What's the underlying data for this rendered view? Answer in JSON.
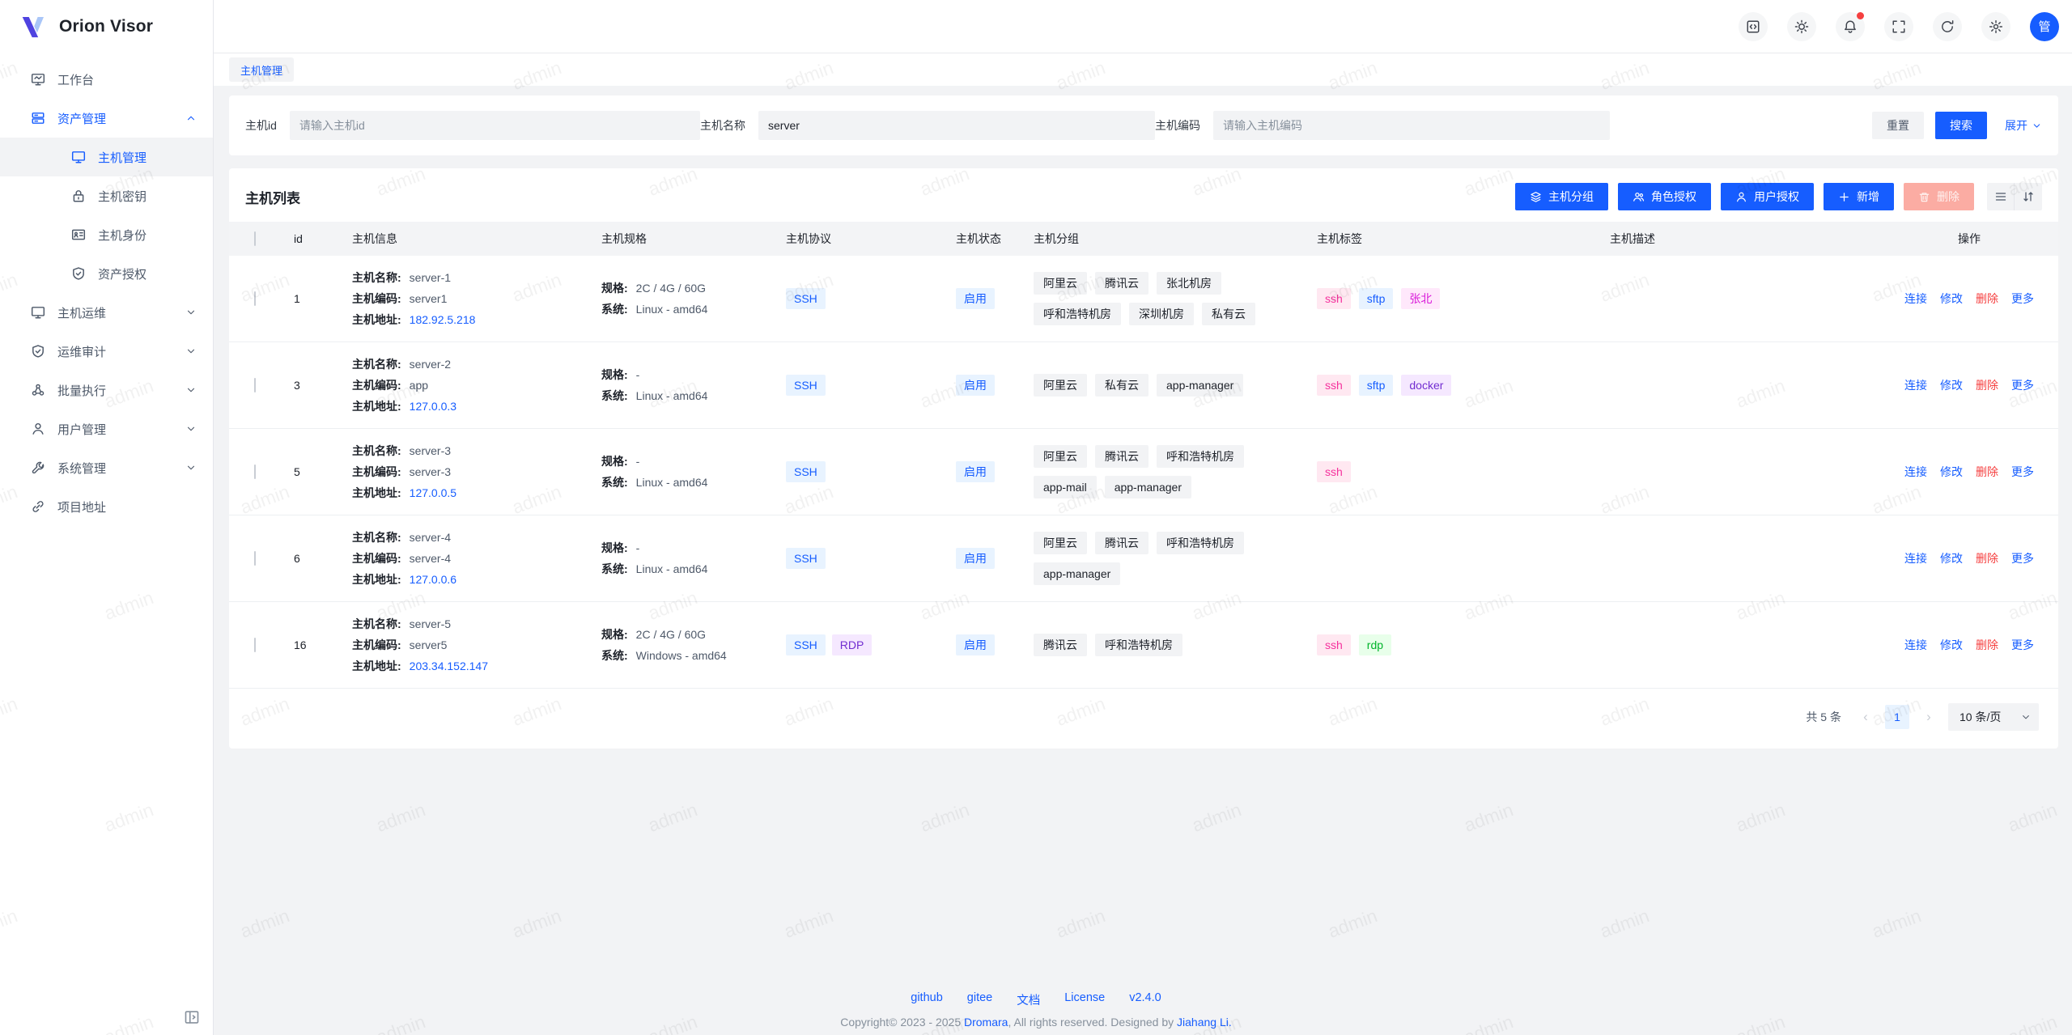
{
  "app": {
    "name": "Orion Visor",
    "avatar_text": "管",
    "watermark_text": "admin"
  },
  "header_icons": [
    {
      "name": "code-icon",
      "icon": "code"
    },
    {
      "name": "theme-icon",
      "icon": "sun"
    },
    {
      "name": "notifications-icon",
      "icon": "bell",
      "badge": true
    },
    {
      "name": "fullscreen-icon",
      "icon": "fullscreen"
    },
    {
      "name": "refresh-icon",
      "icon": "refresh"
    },
    {
      "name": "settings-icon",
      "icon": "gear"
    }
  ],
  "sidebar": {
    "items": [
      {
        "label": "工作台",
        "icon": "workbench",
        "type": "top"
      },
      {
        "label": "资产管理",
        "icon": "asset",
        "type": "top",
        "expanded": true,
        "active_parent": true
      },
      {
        "label": "主机管理",
        "icon": "host",
        "type": "sub",
        "active": true
      },
      {
        "label": "主机密钥",
        "icon": "key",
        "type": "sub"
      },
      {
        "label": "主机身份",
        "icon": "identity",
        "type": "sub"
      },
      {
        "label": "资产授权",
        "icon": "grant",
        "type": "sub"
      },
      {
        "label": "主机运维",
        "icon": "ops",
        "type": "top",
        "collapsible": true
      },
      {
        "label": "运维审计",
        "icon": "audit",
        "type": "top",
        "collapsible": true
      },
      {
        "label": "批量执行",
        "icon": "batch",
        "type": "top",
        "collapsible": true
      },
      {
        "label": "用户管理",
        "icon": "user",
        "type": "top",
        "collapsible": true
      },
      {
        "label": "系统管理",
        "icon": "system",
        "type": "top",
        "collapsible": true
      },
      {
        "label": "项目地址",
        "icon": "link",
        "type": "top"
      }
    ]
  },
  "tab": {
    "label": "主机管理"
  },
  "filter": {
    "fields": [
      {
        "label": "主机id",
        "value": "",
        "placeholder": "请输入主机id"
      },
      {
        "label": "主机名称",
        "value": "server",
        "placeholder": ""
      },
      {
        "label": "主机编码",
        "value": "",
        "placeholder": "请输入主机编码"
      }
    ],
    "reset_label": "重置",
    "search_label": "搜索",
    "expand_label": "展开"
  },
  "list": {
    "title": "主机列表",
    "toolbar": [
      {
        "label": "主机分组",
        "icon": "group",
        "style": "primary",
        "name": "host-group-button"
      },
      {
        "label": "角色授权",
        "icon": "role",
        "style": "primary",
        "name": "role-grant-button"
      },
      {
        "label": "用户授权",
        "icon": "user",
        "style": "primary",
        "name": "user-grant-button"
      },
      {
        "label": "新增",
        "icon": "plus",
        "style": "primary",
        "name": "add-button"
      },
      {
        "label": "删除",
        "icon": "trash",
        "style": "danger-disabled",
        "name": "delete-button"
      }
    ],
    "columns": [
      "id",
      "主机信息",
      "主机规格",
      "主机协议",
      "主机状态",
      "主机分组",
      "主机标签",
      "主机描述",
      "操作"
    ],
    "row_labels": {
      "name": "主机名称:",
      "code": "主机编码:",
      "address": "主机地址:",
      "spec": "规格:",
      "system": "系统:"
    },
    "actions": [
      {
        "label": "连接",
        "color": "blue"
      },
      {
        "label": "修改",
        "color": "blue"
      },
      {
        "label": "删除",
        "color": "red"
      },
      {
        "label": "更多",
        "color": "blue"
      }
    ],
    "rows": [
      {
        "id": "1",
        "name": "server-1",
        "code": "server1",
        "address": "182.92.5.218",
        "spec": "2C / 4G / 60G",
        "system": "Linux - amd64",
        "protocols": [
          {
            "text": "SSH",
            "type": "blue"
          }
        ],
        "status": "启用",
        "groups": [
          "阿里云",
          "腾讯云",
          "张北机房",
          "呼和浩特机房",
          "深圳机房",
          "私有云"
        ],
        "tags": [
          {
            "text": "ssh",
            "type": "magenta"
          },
          {
            "text": "sftp",
            "type": "blue"
          },
          {
            "text": "张北",
            "type": "pinkpurple"
          }
        ],
        "desc": ""
      },
      {
        "id": "3",
        "name": "server-2",
        "code": "app",
        "address": "127.0.0.3",
        "spec": "-",
        "system": "Linux - amd64",
        "protocols": [
          {
            "text": "SSH",
            "type": "blue"
          }
        ],
        "status": "启用",
        "groups": [
          "阿里云",
          "私有云",
          "app-manager"
        ],
        "tags": [
          {
            "text": "ssh",
            "type": "magenta"
          },
          {
            "text": "sftp",
            "type": "blue"
          },
          {
            "text": "docker",
            "type": "purple"
          }
        ],
        "desc": ""
      },
      {
        "id": "5",
        "name": "server-3",
        "code": "server-3",
        "address": "127.0.0.5",
        "spec": "-",
        "system": "Linux - amd64",
        "protocols": [
          {
            "text": "SSH",
            "type": "blue"
          }
        ],
        "status": "启用",
        "groups": [
          "阿里云",
          "腾讯云",
          "呼和浩特机房",
          "app-mail",
          "app-manager"
        ],
        "tags": [
          {
            "text": "ssh",
            "type": "magenta"
          }
        ],
        "desc": ""
      },
      {
        "id": "6",
        "name": "server-4",
        "code": "server-4",
        "address": "127.0.0.6",
        "spec": "-",
        "system": "Linux - amd64",
        "protocols": [
          {
            "text": "SSH",
            "type": "blue"
          }
        ],
        "status": "启用",
        "groups": [
          "阿里云",
          "腾讯云",
          "呼和浩特机房",
          "app-manager"
        ],
        "tags": [],
        "desc": ""
      },
      {
        "id": "16",
        "name": "server-5",
        "code": "server5",
        "address": "203.34.152.147",
        "spec": "2C / 4G / 60G",
        "system": "Windows - amd64",
        "protocols": [
          {
            "text": "SSH",
            "type": "blue"
          },
          {
            "text": "RDP",
            "type": "purple"
          }
        ],
        "status": "启用",
        "groups": [
          "腾讯云",
          "呼和浩特机房"
        ],
        "tags": [
          {
            "text": "ssh",
            "type": "magenta"
          },
          {
            "text": "rdp",
            "type": "green"
          }
        ],
        "desc": ""
      }
    ]
  },
  "pagination": {
    "total": "共 5 条",
    "prev": "‹",
    "page": "1",
    "next": "›",
    "page_size": "10 条/页"
  },
  "footer": {
    "links": [
      "github",
      "gitee",
      "文档",
      "License",
      "v2.4.0"
    ],
    "copyright": [
      {
        "text": "Copyright© 2023 - 2025 ",
        "style": "muted"
      },
      {
        "text": "Dromara",
        "style": "link"
      },
      {
        "text": ", All rights reserved. Designed by ",
        "style": "muted"
      },
      {
        "text": "Jiahang Li.",
        "style": "link"
      }
    ]
  },
  "colors": {
    "primary": "#165dff",
    "danger": "#f53f3f",
    "page_bg": "#f2f3f5",
    "status_enabled_bg": "#e8f3ff",
    "delete_disabled_bg": "#fbaca3",
    "tag_palette": {
      "gray": {
        "bg": "#f2f3f5",
        "fg": "#1d2129"
      },
      "blue": {
        "bg": "#e8f3ff",
        "fg": "#165dff"
      },
      "magenta": {
        "bg": "#ffe8f1",
        "fg": "#f5319d"
      },
      "pinkpurple": {
        "bg": "#ffe8fb",
        "fg": "#d91ad9"
      },
      "purple": {
        "bg": "#f5e8ff",
        "fg": "#722ed1"
      },
      "green": {
        "bg": "#e8ffea",
        "fg": "#00b42a"
      }
    }
  }
}
